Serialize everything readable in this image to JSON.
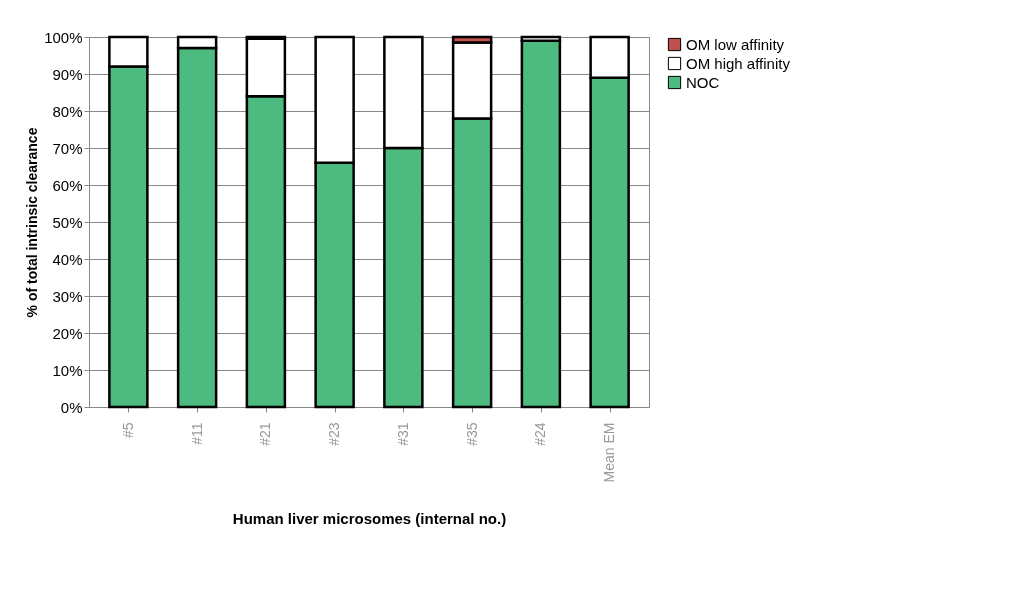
{
  "chart_data": {
    "type": "bar",
    "stacked": true,
    "xlabel": "Human liver microsomes (internal no.)",
    "ylabel": "% of total intrinsic clearance",
    "categories": [
      "#5",
      "#11",
      "#21",
      "#23",
      "#31",
      "#35",
      "#24",
      "Mean EM"
    ],
    "series": [
      {
        "name": "NOC",
        "color": "#4dbb7f",
        "values": [
          92,
          97,
          84,
          66,
          70,
          78,
          99,
          89
        ]
      },
      {
        "name": "OM high affinity",
        "color": "#ffffff",
        "values": [
          8,
          3,
          15.5,
          34,
          30,
          20.5,
          1,
          11
        ]
      },
      {
        "name": "OM low affinity",
        "color": "#c0504d",
        "values": [
          null,
          null,
          0.5,
          null,
          null,
          1.5,
          null,
          null
        ]
      }
    ],
    "ylim": [
      0,
      100
    ],
    "yticks": [
      {
        "value": 0,
        "label": "0%"
      },
      {
        "value": 10,
        "label": "10%"
      },
      {
        "value": 20,
        "label": "20%"
      },
      {
        "value": 30,
        "label": "30%"
      },
      {
        "value": 40,
        "label": "40%"
      },
      {
        "value": 50,
        "label": "50%"
      },
      {
        "value": 60,
        "label": "60%"
      },
      {
        "value": 70,
        "label": "70%"
      },
      {
        "value": 80,
        "label": "80%"
      },
      {
        "value": 90,
        "label": "90%"
      },
      {
        "value": 100,
        "label": "100%"
      }
    ],
    "grid": "y",
    "legend": "right"
  }
}
